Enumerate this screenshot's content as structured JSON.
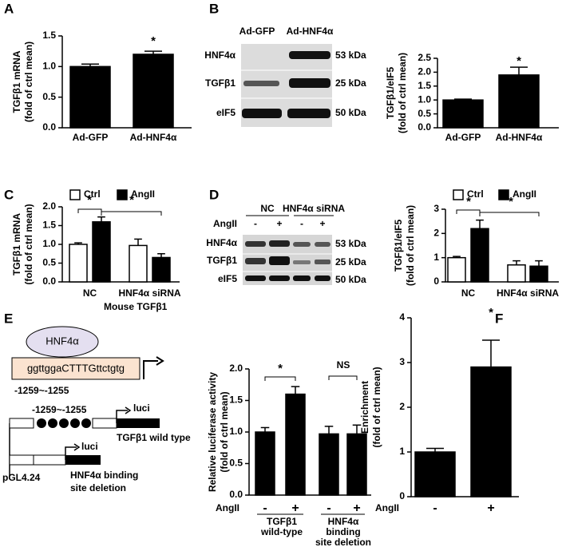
{
  "chart_data": [
    {
      "type": "bar",
      "panel": "A",
      "ylabel": [
        "TGFβ1 mRNA",
        "(fold of ctrl mean)"
      ],
      "categories": [
        "Ad-GFP",
        "Ad-HNF4α"
      ],
      "values": [
        1.0,
        1.2
      ],
      "errors": [
        0.04,
        0.05
      ],
      "color": "#000000",
      "ylim": [
        0,
        1.5
      ],
      "yticks": [
        {
          "value": 0,
          "label": "0.0"
        },
        0.5,
        {
          "value": 1,
          "label": "1.0"
        },
        1.5
      ],
      "annotations": [
        "*"
      ]
    },
    {
      "type": "bar",
      "panel": "B",
      "ylabel": [
        "TGFβ1/eIF5",
        "(fold of ctrl mean)"
      ],
      "categories": [
        "Ad-GFP",
        "Ad-HNF4α"
      ],
      "values": [
        1.0,
        1.9
      ],
      "errors": [
        0.03,
        0.28
      ],
      "color": "#000000",
      "ylim": [
        0,
        2.5
      ],
      "yticks": [
        {
          "value": 0,
          "label": "0.0"
        },
        0.5,
        {
          "value": 1,
          "label": "1.0"
        },
        1.5,
        {
          "value": 2,
          "label": "2.0"
        },
        2.5
      ],
      "annotations": [
        "*"
      ]
    },
    {
      "type": "grouped_bar",
      "panel": "C",
      "ylabel": [
        "TGFβ1 mRNA",
        "(fold of ctrl mean)"
      ],
      "categories": [
        "NC",
        "HNF4α siRNA"
      ],
      "series": [
        {
          "name": "Ctrl",
          "color": "#ffffff",
          "values": [
            1.0,
            0.97
          ],
          "errors": [
            0.04,
            0.17
          ]
        },
        {
          "name": "AngII",
          "color": "#000000",
          "values": [
            1.6,
            0.65
          ],
          "errors": [
            0.13,
            0.1
          ]
        }
      ],
      "ylim": [
        0,
        2
      ],
      "yticks": [
        {
          "value": 0,
          "label": "0.0"
        },
        0.5,
        {
          "value": 1,
          "label": "1.0"
        },
        1.5,
        {
          "value": 2,
          "label": "2.0"
        }
      ],
      "annotations": [
        "*",
        "*"
      ]
    },
    {
      "type": "grouped_bar",
      "panel": "D",
      "ylabel": [
        "TGFβ1/eIF5",
        "(fold of ctrl mean)"
      ],
      "categories": [
        "NC",
        "HNF4α siRNA"
      ],
      "series": [
        {
          "name": "Ctrl",
          "color": "#ffffff",
          "values": [
            1.0,
            0.7
          ],
          "errors": [
            0.05,
            0.17
          ]
        },
        {
          "name": "AngII",
          "color": "#000000",
          "values": [
            2.2,
            0.65
          ],
          "errors": [
            0.35,
            0.22
          ]
        }
      ],
      "ylim": [
        0,
        3
      ],
      "yticks": [
        0,
        1,
        2,
        3
      ],
      "annotations": [
        "*",
        "*"
      ]
    },
    {
      "type": "bar",
      "panel": "E",
      "ylabel": [
        "Relative luciferase activity",
        "(fold of ctrl mean)"
      ],
      "categories": [
        "-",
        "+",
        "-",
        "+"
      ],
      "values": [
        1.0,
        1.6,
        0.97,
        0.97
      ],
      "errors": [
        0.07,
        0.12,
        0.12,
        0.14
      ],
      "color": "#000000",
      "x_row_label": "AngII",
      "groups": [
        [
          "TGFβ1",
          "wild-type"
        ],
        [
          "HNF4α",
          "binding",
          "site deletion"
        ]
      ],
      "ylim": [
        0,
        2
      ],
      "yticks": [
        {
          "value": 0,
          "label": "0.0"
        },
        0.5,
        {
          "value": 1,
          "label": "1.0"
        },
        1.5,
        {
          "value": 2,
          "label": "2.0"
        }
      ],
      "annotations": [
        "*",
        "NS"
      ]
    },
    {
      "type": "bar",
      "panel": "F",
      "ylabel": [
        "Enrichment",
        "(fold of ctrl mean)"
      ],
      "categories": [
        "-",
        "+"
      ],
      "values": [
        1.0,
        2.9
      ],
      "errors": [
        0.08,
        0.6
      ],
      "color": "#000000",
      "x_row_label": "AngII",
      "ylim": [
        0,
        4
      ],
      "yticks": [
        0,
        1,
        2,
        3,
        4
      ],
      "annotations": [
        "*"
      ]
    }
  ],
  "blot_b": {
    "lanes": [
      "Ad-GFP",
      "Ad-HNF4α"
    ],
    "rows": [
      [
        "HNF4α",
        "53 kDa"
      ],
      [
        "TGFβ1",
        "25 kDa"
      ],
      [
        "eIF5",
        "50 kDa"
      ]
    ]
  },
  "blot_d": {
    "groups": [
      "NC",
      "HNF4α siRNA"
    ],
    "treatment": "AngII",
    "signs": [
      "-",
      "+",
      "-",
      "+"
    ],
    "rows": [
      [
        "HNF4α",
        "53 kDa"
      ],
      [
        "TGFβ1",
        "25 kDa"
      ],
      [
        "eIF5",
        "50 kDa"
      ]
    ]
  },
  "diagram_e": {
    "title": "Mouse TGFβ1",
    "factor": "HNF4α",
    "sequence": "ggttggaCTTTGttctgtg",
    "site": "-1259~-1255",
    "construct_site": "-1259~-1255",
    "reporter": "luci",
    "wild_type": "TGFβ1 wild type",
    "deletion": [
      "HNF4α binding",
      "site deletion"
    ],
    "vector": "pGL4.24"
  }
}
